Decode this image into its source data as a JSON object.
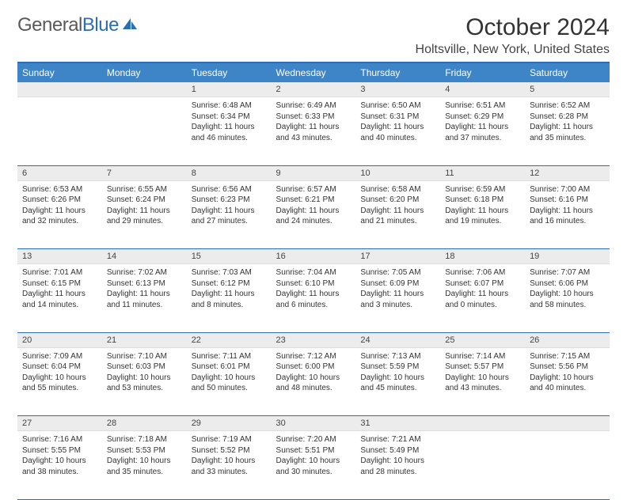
{
  "logo": {
    "text1": "General",
    "text2": "Blue"
  },
  "title": "October 2024",
  "location": "Holtsville, New York, United States",
  "colors": {
    "header_bg": "#3d85c6",
    "accent_border": "#2a6fb5",
    "daynum_bg": "#ececec",
    "text": "#333333"
  },
  "day_headers": [
    "Sunday",
    "Monday",
    "Tuesday",
    "Wednesday",
    "Thursday",
    "Friday",
    "Saturday"
  ],
  "weeks": [
    [
      null,
      null,
      {
        "n": "1",
        "sr": "Sunrise: 6:48 AM",
        "ss": "Sunset: 6:34 PM",
        "d1": "Daylight: 11 hours",
        "d2": "and 46 minutes."
      },
      {
        "n": "2",
        "sr": "Sunrise: 6:49 AM",
        "ss": "Sunset: 6:33 PM",
        "d1": "Daylight: 11 hours",
        "d2": "and 43 minutes."
      },
      {
        "n": "3",
        "sr": "Sunrise: 6:50 AM",
        "ss": "Sunset: 6:31 PM",
        "d1": "Daylight: 11 hours",
        "d2": "and 40 minutes."
      },
      {
        "n": "4",
        "sr": "Sunrise: 6:51 AM",
        "ss": "Sunset: 6:29 PM",
        "d1": "Daylight: 11 hours",
        "d2": "and 37 minutes."
      },
      {
        "n": "5",
        "sr": "Sunrise: 6:52 AM",
        "ss": "Sunset: 6:28 PM",
        "d1": "Daylight: 11 hours",
        "d2": "and 35 minutes."
      }
    ],
    [
      {
        "n": "6",
        "sr": "Sunrise: 6:53 AM",
        "ss": "Sunset: 6:26 PM",
        "d1": "Daylight: 11 hours",
        "d2": "and 32 minutes."
      },
      {
        "n": "7",
        "sr": "Sunrise: 6:55 AM",
        "ss": "Sunset: 6:24 PM",
        "d1": "Daylight: 11 hours",
        "d2": "and 29 minutes."
      },
      {
        "n": "8",
        "sr": "Sunrise: 6:56 AM",
        "ss": "Sunset: 6:23 PM",
        "d1": "Daylight: 11 hours",
        "d2": "and 27 minutes."
      },
      {
        "n": "9",
        "sr": "Sunrise: 6:57 AM",
        "ss": "Sunset: 6:21 PM",
        "d1": "Daylight: 11 hours",
        "d2": "and 24 minutes."
      },
      {
        "n": "10",
        "sr": "Sunrise: 6:58 AM",
        "ss": "Sunset: 6:20 PM",
        "d1": "Daylight: 11 hours",
        "d2": "and 21 minutes."
      },
      {
        "n": "11",
        "sr": "Sunrise: 6:59 AM",
        "ss": "Sunset: 6:18 PM",
        "d1": "Daylight: 11 hours",
        "d2": "and 19 minutes."
      },
      {
        "n": "12",
        "sr": "Sunrise: 7:00 AM",
        "ss": "Sunset: 6:16 PM",
        "d1": "Daylight: 11 hours",
        "d2": "and 16 minutes."
      }
    ],
    [
      {
        "n": "13",
        "sr": "Sunrise: 7:01 AM",
        "ss": "Sunset: 6:15 PM",
        "d1": "Daylight: 11 hours",
        "d2": "and 14 minutes."
      },
      {
        "n": "14",
        "sr": "Sunrise: 7:02 AM",
        "ss": "Sunset: 6:13 PM",
        "d1": "Daylight: 11 hours",
        "d2": "and 11 minutes."
      },
      {
        "n": "15",
        "sr": "Sunrise: 7:03 AM",
        "ss": "Sunset: 6:12 PM",
        "d1": "Daylight: 11 hours",
        "d2": "and 8 minutes."
      },
      {
        "n": "16",
        "sr": "Sunrise: 7:04 AM",
        "ss": "Sunset: 6:10 PM",
        "d1": "Daylight: 11 hours",
        "d2": "and 6 minutes."
      },
      {
        "n": "17",
        "sr": "Sunrise: 7:05 AM",
        "ss": "Sunset: 6:09 PM",
        "d1": "Daylight: 11 hours",
        "d2": "and 3 minutes."
      },
      {
        "n": "18",
        "sr": "Sunrise: 7:06 AM",
        "ss": "Sunset: 6:07 PM",
        "d1": "Daylight: 11 hours",
        "d2": "and 0 minutes."
      },
      {
        "n": "19",
        "sr": "Sunrise: 7:07 AM",
        "ss": "Sunset: 6:06 PM",
        "d1": "Daylight: 10 hours",
        "d2": "and 58 minutes."
      }
    ],
    [
      {
        "n": "20",
        "sr": "Sunrise: 7:09 AM",
        "ss": "Sunset: 6:04 PM",
        "d1": "Daylight: 10 hours",
        "d2": "and 55 minutes."
      },
      {
        "n": "21",
        "sr": "Sunrise: 7:10 AM",
        "ss": "Sunset: 6:03 PM",
        "d1": "Daylight: 10 hours",
        "d2": "and 53 minutes."
      },
      {
        "n": "22",
        "sr": "Sunrise: 7:11 AM",
        "ss": "Sunset: 6:01 PM",
        "d1": "Daylight: 10 hours",
        "d2": "and 50 minutes."
      },
      {
        "n": "23",
        "sr": "Sunrise: 7:12 AM",
        "ss": "Sunset: 6:00 PM",
        "d1": "Daylight: 10 hours",
        "d2": "and 48 minutes."
      },
      {
        "n": "24",
        "sr": "Sunrise: 7:13 AM",
        "ss": "Sunset: 5:59 PM",
        "d1": "Daylight: 10 hours",
        "d2": "and 45 minutes."
      },
      {
        "n": "25",
        "sr": "Sunrise: 7:14 AM",
        "ss": "Sunset: 5:57 PM",
        "d1": "Daylight: 10 hours",
        "d2": "and 43 minutes."
      },
      {
        "n": "26",
        "sr": "Sunrise: 7:15 AM",
        "ss": "Sunset: 5:56 PM",
        "d1": "Daylight: 10 hours",
        "d2": "and 40 minutes."
      }
    ],
    [
      {
        "n": "27",
        "sr": "Sunrise: 7:16 AM",
        "ss": "Sunset: 5:55 PM",
        "d1": "Daylight: 10 hours",
        "d2": "and 38 minutes."
      },
      {
        "n": "28",
        "sr": "Sunrise: 7:18 AM",
        "ss": "Sunset: 5:53 PM",
        "d1": "Daylight: 10 hours",
        "d2": "and 35 minutes."
      },
      {
        "n": "29",
        "sr": "Sunrise: 7:19 AM",
        "ss": "Sunset: 5:52 PM",
        "d1": "Daylight: 10 hours",
        "d2": "and 33 minutes."
      },
      {
        "n": "30",
        "sr": "Sunrise: 7:20 AM",
        "ss": "Sunset: 5:51 PM",
        "d1": "Daylight: 10 hours",
        "d2": "and 30 minutes."
      },
      {
        "n": "31",
        "sr": "Sunrise: 7:21 AM",
        "ss": "Sunset: 5:49 PM",
        "d1": "Daylight: 10 hours",
        "d2": "and 28 minutes."
      },
      null,
      null
    ]
  ]
}
